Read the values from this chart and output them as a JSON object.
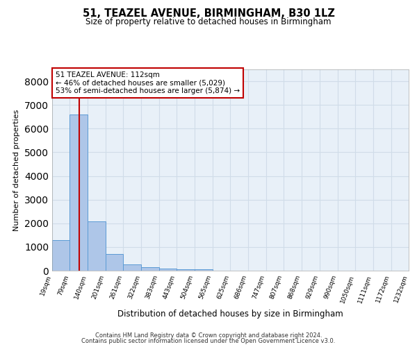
{
  "title1": "51, TEAZEL AVENUE, BIRMINGHAM, B30 1LZ",
  "title2": "Size of property relative to detached houses in Birmingham",
  "xlabel": "Distribution of detached houses by size in Birmingham",
  "ylabel": "Number of detached properties",
  "bar_heights": [
    1300,
    6600,
    2075,
    700,
    270,
    140,
    90,
    60,
    60,
    0,
    0,
    0,
    0,
    0,
    0,
    0,
    0,
    0,
    0,
    0
  ],
  "bin_edges": [
    19,
    79,
    140,
    201,
    261,
    322,
    383,
    443,
    504,
    565,
    625,
    686,
    747,
    807,
    868,
    929,
    990,
    1050,
    1111,
    1172,
    1232
  ],
  "bar_color": "#aec6e8",
  "bar_line_color": "#5b9bd5",
  "property_line_x": 112,
  "property_line_color": "#c00000",
  "annotation_text": "51 TEAZEL AVENUE: 112sqm\n← 46% of detached houses are smaller (5,029)\n53% of semi-detached houses are larger (5,874) →",
  "annotation_box_color": "#c00000",
  "ylim": [
    0,
    8500
  ],
  "yticks": [
    0,
    1000,
    2000,
    3000,
    4000,
    5000,
    6000,
    7000,
    8000
  ],
  "grid_color": "#d0dce8",
  "bg_color": "#e8f0f8",
  "footnote1": "Contains HM Land Registry data © Crown copyright and database right 2024.",
  "footnote2": "Contains public sector information licensed under the Open Government Licence v3.0.",
  "tick_labels": [
    "19sqm",
    "79sqm",
    "140sqm",
    "201sqm",
    "261sqm",
    "322sqm",
    "383sqm",
    "443sqm",
    "504sqm",
    "565sqm",
    "625sqm",
    "686sqm",
    "747sqm",
    "807sqm",
    "868sqm",
    "929sqm",
    "990sqm",
    "1050sqm",
    "1111sqm",
    "1172sqm",
    "1232sqm"
  ]
}
